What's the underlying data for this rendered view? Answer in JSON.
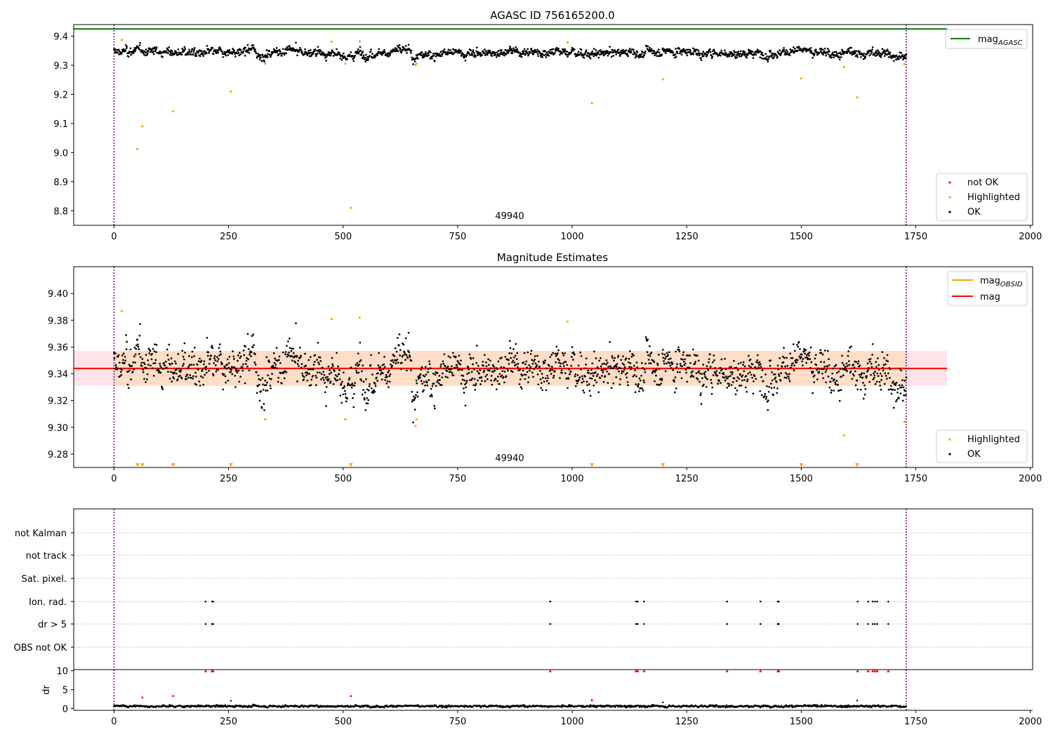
{
  "colors": {
    "ok": "#000000",
    "highlighted": "#ffa500",
    "not_ok": "#ff0000",
    "mag_agasc": "#008000",
    "mag_obsid": "#ffa500",
    "mag": "#ff0000",
    "obs_band": "#ffdab9",
    "mag_band": "#ffc0cb",
    "obs_boundary": "#800080",
    "grid": "#b0b0b0"
  },
  "chart_data": [
    {
      "type": "scatter",
      "title": "AGASC ID 756165200.0",
      "xlim": [
        -88,
        2005
      ],
      "ylim": [
        8.75,
        9.44
      ],
      "xticks": [
        0,
        250,
        500,
        750,
        1000,
        1250,
        1500,
        1750,
        2000
      ],
      "yticks": [
        8.8,
        8.9,
        9.0,
        9.1,
        9.2,
        9.3,
        9.4
      ],
      "ytick_labels": [
        "8.8",
        "8.9",
        "9.0",
        "9.1",
        "9.2",
        "9.3",
        "9.4"
      ],
      "obsid_label": "49940",
      "obsid_label_x": 866,
      "obs_boundaries": [
        0,
        1729
      ],
      "reference_lines": [
        {
          "name": "mag_AGASC",
          "y": 9.425,
          "x": [
            -88,
            1818
          ],
          "color": "#008000"
        }
      ],
      "series": [
        {
          "name": "OK",
          "generated": true,
          "n": 1730,
          "x_range": [
            0,
            1729
          ],
          "baseline": 9.345,
          "noise": 0.011,
          "dips": [
            [
              310,
              345,
              -0.01
            ],
            [
              480,
              525,
              -0.012
            ],
            [
              650,
              700,
              -0.015
            ],
            [
              1690,
              1729,
              -0.012
            ]
          ]
        },
        {
          "name": "Highlighted",
          "x": [
            17,
            51,
            62,
            129,
            255,
            330,
            475,
            505,
            517,
            536,
            658,
            660,
            990,
            1043,
            1198,
            1500,
            1593,
            1622,
            1725
          ],
          "y": [
            9.387,
            9.012,
            9.09,
            9.142,
            9.21,
            9.306,
            9.381,
            9.306,
            8.81,
            9.382,
            9.301,
            9.306,
            9.379,
            9.17,
            9.252,
            9.255,
            9.294,
            9.19,
            9.304
          ]
        },
        {
          "name": "not OK",
          "x": [],
          "y": []
        }
      ],
      "legend": [
        {
          "label": "mag",
          "sub": "AGASC",
          "kind": "line",
          "color": "#008000",
          "position": "top-right"
        },
        {
          "label": "not OK",
          "kind": "marker",
          "color": "#ff0000",
          "position": "bottom-right"
        },
        {
          "label": "Highlighted",
          "kind": "marker",
          "color": "#ffa500",
          "position": "bottom-right"
        },
        {
          "label": "OK",
          "kind": "marker",
          "color": "#000000",
          "position": "bottom-right"
        }
      ]
    },
    {
      "type": "scatter",
      "title": "Magnitude Estimates",
      "xlim": [
        -88,
        2005
      ],
      "ylim": [
        9.27,
        9.42
      ],
      "xticks": [
        0,
        250,
        500,
        750,
        1000,
        1250,
        1500,
        1750,
        2000
      ],
      "yticks": [
        9.28,
        9.3,
        9.32,
        9.34,
        9.36,
        9.38,
        9.4
      ],
      "ytick_labels": [
        "9.28",
        "9.30",
        "9.32",
        "9.34",
        "9.36",
        "9.38",
        "9.40"
      ],
      "obsid_label": "49940",
      "obsid_label_x": 866,
      "obs_boundaries": [
        0,
        1729
      ],
      "mag": {
        "value": 9.344,
        "sigma": 0.013,
        "x": [
          -88,
          1818
        ]
      },
      "mag_obsid": {
        "value": 9.344,
        "sigma": 0.013,
        "x": [
          0,
          1729
        ]
      },
      "series": [
        {
          "name": "OK",
          "generated": true
        },
        {
          "name": "Highlighted",
          "x": [
            17,
            475,
            505,
            536,
            658,
            660,
            990,
            1593,
            1725,
            330
          ],
          "y": [
            9.387,
            9.381,
            9.306,
            9.382,
            9.301,
            9.306,
            9.379,
            9.294,
            9.304,
            9.306
          ]
        },
        {
          "name": "Highlighted (below range)",
          "marker": "triangle-down",
          "x": [
            51,
            62,
            129,
            255,
            517,
            1043,
            1198,
            1500,
            1622
          ]
        }
      ],
      "legend": [
        {
          "label": "mag",
          "sub": "OBSID",
          "kind": "line",
          "color": "#ffa500",
          "position": "top-right"
        },
        {
          "label": "mag",
          "kind": "line",
          "color": "#ff0000",
          "position": "top-right"
        },
        {
          "label": "Highlighted",
          "kind": "marker",
          "color": "#ffa500",
          "position": "bottom-right"
        },
        {
          "label": "OK",
          "kind": "marker",
          "color": "#000000",
          "position": "bottom-right"
        }
      ]
    },
    {
      "type": "scatter",
      "title": "",
      "xlim": [
        -88,
        2005
      ],
      "categories": [
        "not Kalman",
        "not track",
        "Sat. pixel.",
        "Ion. rad.",
        "dr > 5",
        "OBS not OK"
      ],
      "obs_boundaries": [
        0,
        1729
      ],
      "flag_x": [
        200,
        214,
        216,
        952,
        1139,
        1143,
        1157,
        1338,
        1411,
        1449,
        1451,
        1623,
        1646,
        1656,
        1661,
        1666,
        1690
      ],
      "flags": {
        "not Kalman": [],
        "not track": [],
        "Sat. pixel.": [],
        "Ion. rad.": [
          200,
          214,
          216,
          952,
          1139,
          1143,
          1157,
          1338,
          1411,
          1449,
          1451,
          1623,
          1646,
          1656,
          1661,
          1666,
          1690
        ],
        "dr > 5": [
          200,
          214,
          216,
          952,
          1139,
          1143,
          1157,
          1338,
          1411,
          1449,
          1451,
          1623,
          1646,
          1656,
          1661,
          1666,
          1690
        ],
        "OBS not OK": []
      }
    },
    {
      "type": "scatter",
      "title": "",
      "ylabel": "dr",
      "xlim": [
        -88,
        2005
      ],
      "ylim": [
        -0.5,
        10.3
      ],
      "yticks": [
        0,
        5,
        10
      ],
      "ytick_labels": [
        "0",
        "5",
        "10"
      ],
      "xticks": [
        0,
        250,
        500,
        750,
        1000,
        1250,
        1500,
        1750,
        2000
      ],
      "obs_boundaries": [
        0,
        1729
      ],
      "clipped_marker_y": 10,
      "clipped_x": [
        200,
        214,
        216,
        952,
        1139,
        1143,
        1157,
        1338,
        1411,
        1449,
        1451,
        1623,
        1646,
        1656,
        1661,
        1666,
        1690
      ],
      "series": [
        {
          "name": "OK",
          "generated": true,
          "baseline": 0.6,
          "noise": 0.25
        },
        {
          "name": "not OK",
          "x": [
            62,
            129,
            517,
            1043
          ],
          "y": [
            2.9,
            3.3,
            3.3,
            2.2
          ]
        },
        {
          "name": "OK (outliers)",
          "x": [
            255,
            1043,
            1198,
            1622
          ],
          "y": [
            2.0,
            2.1,
            1.6,
            2.1
          ]
        }
      ]
    }
  ]
}
